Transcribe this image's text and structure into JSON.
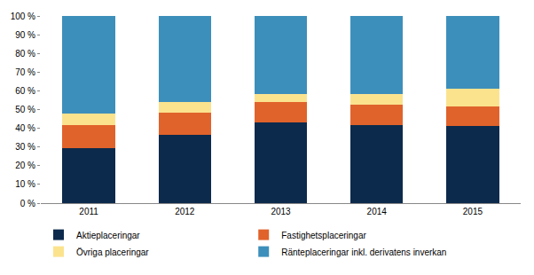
{
  "chart_data": {
    "type": "bar",
    "stacked": true,
    "categories": [
      "2011",
      "2012",
      "2013",
      "2014",
      "2015"
    ],
    "series": [
      {
        "name": "Aktieplaceringar",
        "color": "#0c2a4c",
        "values": [
          29.5,
          36.5,
          43,
          41.5,
          41
        ]
      },
      {
        "name": "Fastighetsplaceringar",
        "color": "#e0632b",
        "values": [
          12,
          12,
          11,
          11,
          10.5
        ]
      },
      {
        "name": "Övriga placeringar",
        "color": "#fbe38e",
        "values": [
          6.5,
          5.5,
          4.5,
          6,
          9.5
        ]
      },
      {
        "name": "Ränteplaceringar inkl. derivatens inverkan",
        "color": "#3d8fbb",
        "values": [
          52,
          46,
          41.5,
          41.5,
          39
        ]
      }
    ],
    "ylim": [
      0,
      100
    ],
    "yticks": [
      {
        "value": 0,
        "label": "0 %"
      },
      {
        "value": 10,
        "label": "10 %"
      },
      {
        "value": 20,
        "label": "20 %"
      },
      {
        "value": 30,
        "label": "30 %"
      },
      {
        "value": 40,
        "label": "40 %"
      },
      {
        "value": 50,
        "label": "50 %"
      },
      {
        "value": 60,
        "label": "60 %"
      },
      {
        "value": 70,
        "label": "70 %"
      },
      {
        "value": 80,
        "label": "80 %"
      },
      {
        "value": 90,
        "label": "90 %"
      },
      {
        "value": 100,
        "label": "100 %"
      }
    ],
    "grid": false,
    "legend": "bottom"
  }
}
